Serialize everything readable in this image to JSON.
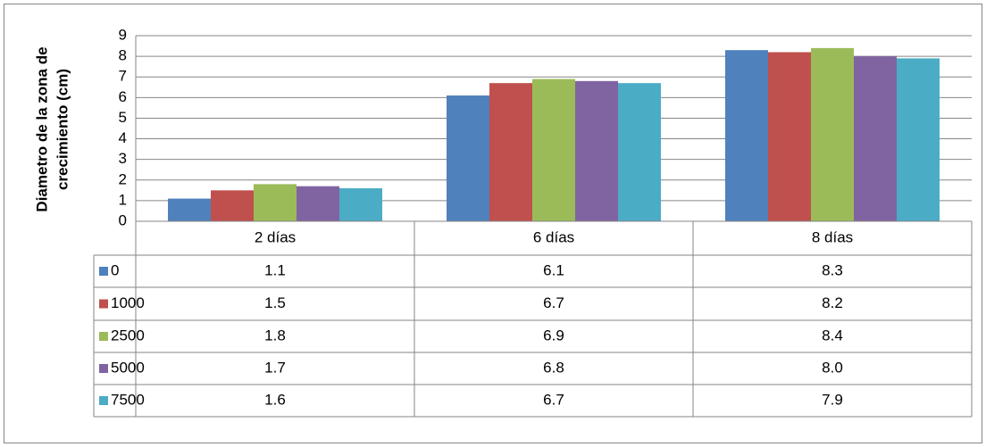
{
  "chart_data": {
    "type": "bar",
    "y_label": [
      "Diametro de la zona de",
      "crecimiento (cm)"
    ],
    "categories": [
      "2 días",
      "6 días",
      "8 días"
    ],
    "series": [
      {
        "name": "0",
        "color": "#4f81bd",
        "values": [
          1.1,
          6.1,
          8.3
        ],
        "value_labels": [
          "1.1",
          "6.1",
          "8.3"
        ]
      },
      {
        "name": "1000",
        "color": "#c0504d",
        "values": [
          1.5,
          6.7,
          8.2
        ],
        "value_labels": [
          "1.5",
          "6.7",
          "8.2"
        ]
      },
      {
        "name": "2500",
        "color": "#9bbb59",
        "values": [
          1.8,
          6.9,
          8.4
        ],
        "value_labels": [
          "1.8",
          "6.9",
          "8.4"
        ]
      },
      {
        "name": "5000",
        "color": "#8064a2",
        "values": [
          1.7,
          6.8,
          8.0
        ],
        "value_labels": [
          "1.7",
          "6.8",
          "8.0"
        ]
      },
      {
        "name": "7500",
        "color": "#4bacc6",
        "values": [
          1.6,
          6.7,
          7.9
        ],
        "value_labels": [
          "1.6",
          "6.7",
          "7.9"
        ]
      }
    ],
    "ylim": [
      0,
      9
    ],
    "yticks": [
      0,
      1,
      2,
      3,
      4,
      5,
      6,
      7,
      8,
      9
    ],
    "grid": true
  }
}
